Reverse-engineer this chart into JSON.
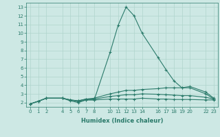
{
  "xlabel": "Humidex (Indice chaleur)",
  "bg_color": "#cde8e4",
  "grid_color": "#b0d4cc",
  "line_color": "#2a7a6a",
  "xlim": [
    -0.5,
    23.5
  ],
  "ylim": [
    1.5,
    13.5
  ],
  "xticks": [
    0,
    1,
    2,
    4,
    5,
    6,
    7,
    8,
    10,
    11,
    12,
    13,
    14,
    16,
    17,
    18,
    19,
    20,
    22,
    23
  ],
  "yticks": [
    2,
    3,
    4,
    5,
    6,
    7,
    8,
    9,
    10,
    11,
    12,
    13
  ],
  "lines": [
    {
      "x": [
        0,
        1,
        2,
        4,
        5,
        6,
        7,
        8,
        10,
        11,
        12,
        13,
        14,
        16,
        17,
        18,
        19,
        20,
        22,
        23
      ],
      "y": [
        1.85,
        2.15,
        2.5,
        2.5,
        2.2,
        2.0,
        2.3,
        2.3,
        7.8,
        10.9,
        13.0,
        12.0,
        10.0,
        7.2,
        5.8,
        4.5,
        3.7,
        3.7,
        3.0,
        2.4
      ]
    },
    {
      "x": [
        0,
        1,
        2,
        4,
        5,
        6,
        7,
        8,
        10,
        11,
        12,
        13,
        14,
        16,
        17,
        18,
        19,
        20,
        22,
        23
      ],
      "y": [
        1.85,
        2.15,
        2.5,
        2.5,
        2.3,
        2.2,
        2.4,
        2.5,
        3.0,
        3.2,
        3.4,
        3.4,
        3.5,
        3.6,
        3.7,
        3.7,
        3.7,
        3.85,
        3.2,
        2.5
      ]
    },
    {
      "x": [
        0,
        1,
        2,
        4,
        5,
        6,
        7,
        8,
        10,
        11,
        12,
        13,
        14,
        16,
        17,
        18,
        19,
        20,
        22,
        23
      ],
      "y": [
        1.85,
        2.15,
        2.5,
        2.5,
        2.3,
        2.2,
        2.4,
        2.4,
        2.7,
        2.8,
        2.9,
        2.9,
        3.0,
        2.95,
        2.9,
        2.85,
        2.8,
        2.8,
        2.6,
        2.4
      ]
    },
    {
      "x": [
        0,
        1,
        2,
        4,
        5,
        6,
        7,
        8,
        10,
        11,
        12,
        13,
        14,
        16,
        17,
        18,
        19,
        20,
        22,
        23
      ],
      "y": [
        1.85,
        2.15,
        2.5,
        2.5,
        2.3,
        2.1,
        2.3,
        2.3,
        2.4,
        2.4,
        2.4,
        2.4,
        2.5,
        2.4,
        2.4,
        2.35,
        2.35,
        2.35,
        2.3,
        2.3
      ]
    }
  ]
}
